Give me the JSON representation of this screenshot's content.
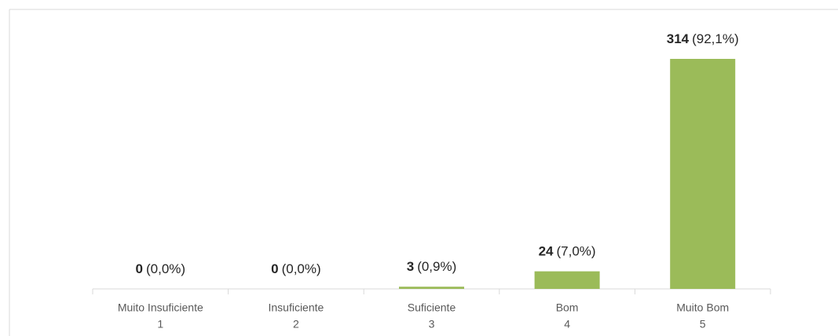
{
  "chart_data": {
    "type": "bar",
    "categories": [
      "Muito Insuficiente",
      "Insuficiente",
      "Suficiente",
      "Bom",
      "Muito Bom"
    ],
    "category_numbers": [
      1,
      2,
      3,
      4,
      5
    ],
    "values": [
      0,
      0,
      3,
      24,
      314
    ],
    "percentage_labels": [
      "(0,0%)",
      "(0,0%)",
      "(0,9%)",
      "(7,0%)",
      "(92,1%)"
    ],
    "color": "#9bbb59"
  }
}
